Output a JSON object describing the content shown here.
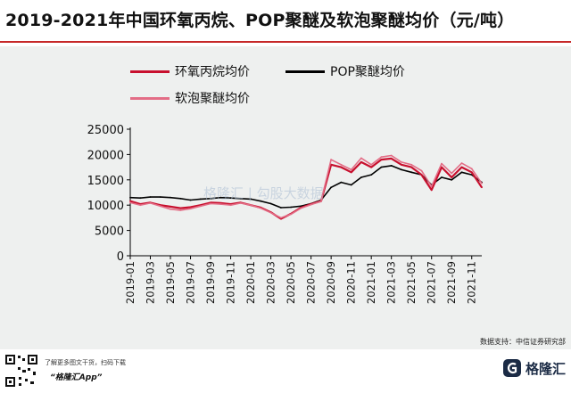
{
  "title": "2019-2021年中国环氧丙烷、POP聚醚及软泡聚醚均价（元/吨）",
  "source": "数据支持：中信证券研究部",
  "watermark": "格隆汇 | 勾股大数据",
  "footer": {
    "line1": "了解更多图文干货，扫码下载",
    "line2": "“格隆汇App”",
    "brand": "格隆汇"
  },
  "colors": {
    "epoxy": "#c8102e",
    "pop": "#000000",
    "soft": "#e36d86",
    "accent": "#c62828",
    "panel": "#eef0ef"
  },
  "chart_data": {
    "type": "line",
    "title": "2019-2021年中国环氧丙烷、POP聚醚及软泡聚醚均价（元/吨）",
    "xlabel": "",
    "ylabel": "",
    "ylim": [
      0,
      25000
    ],
    "yticks": [
      0,
      5000,
      10000,
      15000,
      20000,
      25000
    ],
    "grid": false,
    "legend_position": "top-left",
    "x": [
      "2019-01",
      "2019-02",
      "2019-03",
      "2019-04",
      "2019-05",
      "2019-06",
      "2019-07",
      "2019-08",
      "2019-09",
      "2019-10",
      "2019-11",
      "2019-12",
      "2020-01",
      "2020-02",
      "2020-03",
      "2020-04",
      "2020-05",
      "2020-06",
      "2020-07",
      "2020-08",
      "2020-09",
      "2020-10",
      "2020-11",
      "2020-12",
      "2021-01",
      "2021-02",
      "2021-03",
      "2021-04",
      "2021-05",
      "2021-06",
      "2021-07",
      "2021-08",
      "2021-09",
      "2021-10",
      "2021-11",
      "2021-12"
    ],
    "xticks": [
      "2019-01",
      "2019-03",
      "2019-05",
      "2019-07",
      "2019-09",
      "2019-11",
      "2020-01",
      "2020-03",
      "2020-05",
      "2020-07",
      "2020-09",
      "2020-11",
      "2021-01",
      "2021-03",
      "2021-05",
      "2021-07",
      "2021-09",
      "2021-11"
    ],
    "series": [
      {
        "name": "环氧丙烷均价",
        "color": "#c8102e",
        "width": 2.2,
        "values": [
          10800,
          10200,
          10500,
          10000,
          9700,
          9400,
          9600,
          10000,
          10500,
          10400,
          10200,
          10500,
          10000,
          9500,
          8600,
          7300,
          8300,
          9500,
          10200,
          10800,
          18000,
          17500,
          16500,
          18500,
          17500,
          19000,
          19200,
          18000,
          17500,
          16000,
          13000,
          17500,
          15500,
          17500,
          16500,
          13500
        ]
      },
      {
        "name": "POP聚醚均价",
        "color": "#000000",
        "width": 1.6,
        "values": [
          11500,
          11400,
          11600,
          11600,
          11500,
          11300,
          11000,
          11200,
          11300,
          11500,
          11400,
          11300,
          11200,
          10800,
          10300,
          9500,
          9600,
          9800,
          10300,
          11000,
          13500,
          14500,
          14000,
          15500,
          16000,
          17500,
          17800,
          17000,
          16500,
          16000,
          14000,
          15500,
          15000,
          16500,
          16000,
          14500
        ]
      },
      {
        "name": "软泡聚醚均价",
        "color": "#e36d86",
        "width": 1.6,
        "values": [
          10500,
          10000,
          10400,
          9800,
          9200,
          9000,
          9300,
          9800,
          10300,
          10200,
          10000,
          10400,
          10000,
          9400,
          8500,
          7500,
          8200,
          9400,
          10100,
          10800,
          19000,
          18000,
          17000,
          19300,
          18000,
          19500,
          19800,
          18500,
          18000,
          16800,
          13700,
          18200,
          16300,
          18300,
          17200,
          14300
        ]
      }
    ]
  }
}
